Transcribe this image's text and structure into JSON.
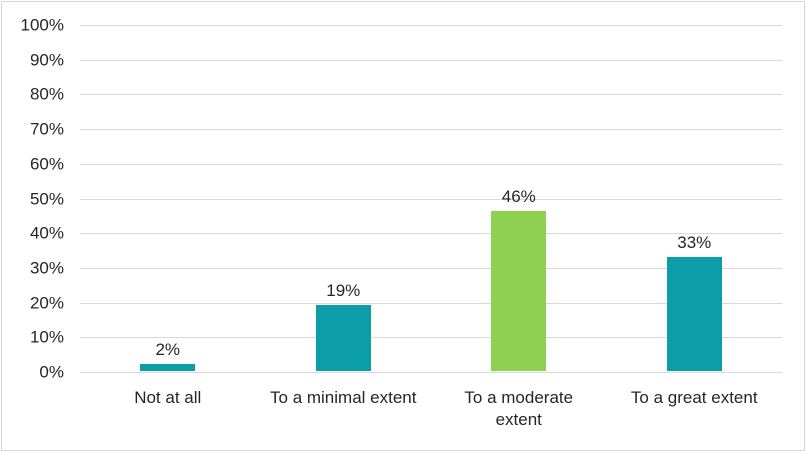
{
  "chart_data": {
    "type": "bar",
    "title": "",
    "xlabel": "",
    "ylabel": "",
    "categories": [
      "Not at all",
      "To a minimal extent",
      "To a moderate\nextent",
      "To a great extent"
    ],
    "values": [
      2,
      19,
      46,
      33
    ],
    "value_labels": [
      "2%",
      "19%",
      "46%",
      "33%"
    ],
    "bar_colors": [
      "#0b9ea8",
      "#0b9ea8",
      "#8ed150",
      "#0b9ea8"
    ],
    "ylim": [
      0,
      100
    ],
    "y_ticks": [
      0,
      10,
      20,
      30,
      40,
      50,
      60,
      70,
      80,
      90,
      100
    ],
    "y_tick_labels": [
      "0%",
      "10%",
      "20%",
      "30%",
      "40%",
      "50%",
      "60%",
      "70%",
      "80%",
      "90%",
      "100%"
    ],
    "grid": "horizontal",
    "legend": "none",
    "colors": {
      "teal": "#0b9ea8",
      "green": "#8ed150",
      "gridline": "#d9d9d9",
      "border": "#d7d7d7",
      "text": "#262626"
    }
  }
}
